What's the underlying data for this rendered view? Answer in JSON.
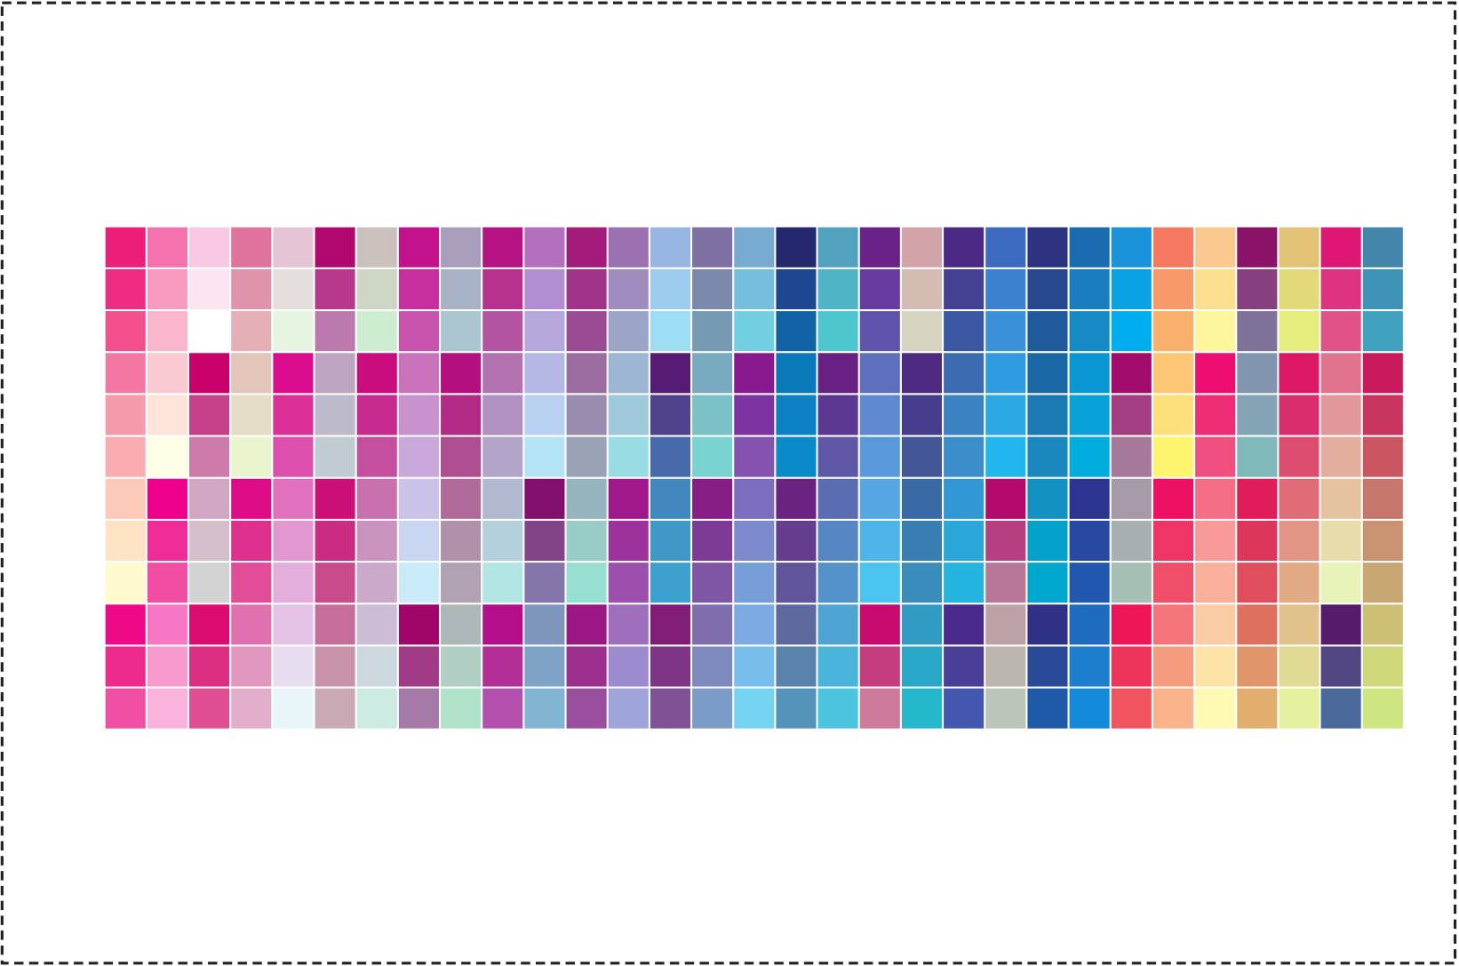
{
  "swatches": {
    "rows": [
      [
        "#ED1E79",
        "#F472AE",
        "#F9C9E3",
        "#DF739C",
        "#E5C5D3",
        "#B0086E",
        "#CAC0BC",
        "#C4128C",
        "#A99EBC",
        "#B51283",
        "#B46EBE",
        "#A21A7A",
        "#9B70B0",
        "#98B6E2",
        "#7D70A3",
        "#76AAD1",
        "#25276F",
        "#52A1BF",
        "#6A2188",
        "#D2A4AA",
        "#4A2A85",
        "#3D6BC1",
        "#2D3381",
        "#1B6BB0",
        "#1A93DA",
        "#F47960",
        "#FBC98F",
        "#8A1368",
        "#E2C275",
        "#DE1674",
        "#4485AB"
      ],
      [
        "#EF2C82",
        "#F79AC0",
        "#FCE5F1",
        "#E094AB",
        "#E4DFDA",
        "#B7398C",
        "#CED6C5",
        "#C72F9F",
        "#A8B2C6",
        "#B7328F",
        "#B28ED0",
        "#A0338A",
        "#9F8DBF",
        "#9ECCEF",
        "#7C89AD",
        "#76BFDC",
        "#1D4790",
        "#4FB5C6",
        "#683BA0",
        "#D4BCB3",
        "#444192",
        "#3A82CF",
        "#27488F",
        "#1A7DBF",
        "#0BA2E4",
        "#F8996A",
        "#FDE08F",
        "#87407F",
        "#E2DA78",
        "#DE3381",
        "#3F93B7"
      ],
      [
        "#F24F8C",
        "#F9B5CB",
        "#FFFFFF",
        "#E4B0B5",
        "#E6F5E1",
        "#BB79AE",
        "#CDEDD0",
        "#C854AE",
        "#ABC5D1",
        "#B354A2",
        "#B3A7DB",
        "#9A4B92",
        "#9AA5C8",
        "#9CDDF4",
        "#759AB1",
        "#72CFE2",
        "#1163A5",
        "#4DC6CE",
        "#5E52AA",
        "#D6D3C0",
        "#3C57A2",
        "#3A91DA",
        "#215A9C",
        "#168AC4",
        "#00AEEF",
        "#F9B06C",
        "#FEF69C",
        "#7F7298",
        "#E5EE7C",
        "#E15386",
        "#40A2BE"
      ],
      [
        "#F477A3",
        "#FACAD3",
        "#C9006B",
        "#E2C4B8",
        "#DB0C8E",
        "#BDA5C1",
        "#C90D7F",
        "#CA73BC",
        "#B30F7E",
        "#B272AF",
        "#B5B8E4",
        "#9C6EA0",
        "#9BB5D2",
        "#561B75",
        "#78ABBF",
        "#88198F",
        "#0979BA",
        "#692083",
        "#5E6FBE",
        "#4E2A82",
        "#3C6BB0",
        "#2F9BE0",
        "#1A68A6",
        "#0996D3",
        "#A20D6D",
        "#FDC674",
        "#EE0E71",
        "#8295AE",
        "#DD1865",
        "#E0748C",
        "#C81A5D"
      ],
      [
        "#F59AAA",
        "#FEE4DA",
        "#C6418A",
        "#E4DCC5",
        "#DC2F98",
        "#BDBACB",
        "#C72B8F",
        "#CA91CF",
        "#B12B87",
        "#B08FC1",
        "#B8D1F0",
        "#9A8CAE",
        "#9DC9DB",
        "#4F418C",
        "#7CC0C8",
        "#7C34A0",
        "#0C82C3",
        "#5D3892",
        "#5E89CE",
        "#463D8C",
        "#3A82C2",
        "#2CA8E5",
        "#1B7AB4",
        "#08A2D7",
        "#A33E82",
        "#FCE07C",
        "#EE2D75",
        "#82A4B5",
        "#DA2D6C",
        "#E2989B",
        "#C8355F"
      ],
      [
        "#F8AEB1",
        "#FFFFE5",
        "#CC7BAB",
        "#E8F5CD",
        "#DD4FAD",
        "#C1CCD2",
        "#C54F9F",
        "#C9A8DC",
        "#AE4D90",
        "#B3A4CA",
        "#B4E3F6",
        "#9AA3B5",
        "#9ADCE3",
        "#466AAA",
        "#79D3D0",
        "#8453AE",
        "#0A8AC9",
        "#5E58A6",
        "#5799DB",
        "#425597",
        "#3A8DC9",
        "#22B6EE",
        "#1A87BE",
        "#00ADDC",
        "#A6789A",
        "#FEF56E",
        "#EF5080",
        "#80B9BA",
        "#DB4C6E",
        "#E3AE9E",
        "#C95661"
      ],
      [
        "#FBCAB8",
        "#EC008C",
        "#D1A7C4",
        "#DE0D87",
        "#E170BE",
        "#CA0F77",
        "#C970AF",
        "#CBC2E8",
        "#B06B9B",
        "#B1B9D1",
        "#830F6C",
        "#96B4BD",
        "#A0188C",
        "#4287BD",
        "#861E86",
        "#7C6DBE",
        "#6A2381",
        "#5A6DB0",
        "#56A6E3",
        "#3A6AA4",
        "#3198D3",
        "#B30A6C",
        "#1192C3",
        "#2B3591",
        "#A69AA8",
        "#EE1163",
        "#F46E86",
        "#DF1D58",
        "#E06C78",
        "#E5C39E",
        "#C6766A"
      ],
      [
        "#FDE3C3",
        "#EE2B97",
        "#D4BFCA",
        "#DE2F8C",
        "#E197CF",
        "#C92C81",
        "#CA92BE",
        "#C9D6F2",
        "#B190AA",
        "#B3D0DC",
        "#834389",
        "#98CCC6",
        "#9D329D",
        "#3F98C6",
        "#7E3B96",
        "#7C89CD",
        "#643D8E",
        "#5686C4",
        "#4FB5E9",
        "#387EB1",
        "#2AA6D9",
        "#B63F82",
        "#04A1CA",
        "#2849A0",
        "#A7AFB1",
        "#EF3466",
        "#F79A98",
        "#DC365A",
        "#E19585",
        "#E6DDAB",
        "#C99371"
      ],
      [
        "#FFFACD",
        "#F04DA3",
        "#D3D3D3",
        "#E14D97",
        "#E3AEDC",
        "#C84C8C",
        "#CBA9CA",
        "#C9ECF8",
        "#B0A2B3",
        "#B2E5E3",
        "#8476AB",
        "#97DFD0",
        "#9D4FAE",
        "#3EA0CF",
        "#7F55A5",
        "#789ED9",
        "#60559B",
        "#5392CA",
        "#4BC4F0",
        "#3A8CBB",
        "#25B3E0",
        "#B97798",
        "#00A8CE",
        "#2157AF",
        "#A6BFB5",
        "#F04F6A",
        "#F9B09B",
        "#DE4E5C",
        "#E0AB84",
        "#E8F3B7",
        "#C9A772"
      ],
      [
        "#EE0A87",
        "#F677C3",
        "#DC0B70",
        "#E170AF",
        "#E5C3E7",
        "#C76D99",
        "#CBBDD3",
        "#A0066A",
        "#AEB7B7",
        "#B40E8A",
        "#7F96BC",
        "#9B1884",
        "#9E6FBD",
        "#811D74",
        "#7F6EAD",
        "#7BABE2",
        "#5E69A0",
        "#4EA4D2",
        "#C70A6E",
        "#309CC4",
        "#4B2A8E",
        "#BCA2A6",
        "#2E3186",
        "#1D6CBF",
        "#EE1656",
        "#F5747A",
        "#F9CCA3",
        "#DE705F",
        "#E1C28D",
        "#561C6B",
        "#CDBF73"
      ],
      [
        "#EF2A8D",
        "#F79BCF",
        "#DC2E82",
        "#E297BF",
        "#E6DDF1",
        "#C893A8",
        "#CCD7DE",
        "#A23B87",
        "#B0CEC3",
        "#B42E97",
        "#7FA3C7",
        "#9C2F8E",
        "#9C8BCF",
        "#7E3585",
        "#7E8ABD",
        "#77BEEC",
        "#5A83AB",
        "#4AB4DA",
        "#C43D7F",
        "#2AA8C9",
        "#4A3F98",
        "#BBB6B0",
        "#2A4A99",
        "#1C7ECC",
        "#EF3459",
        "#F69C7E",
        "#FCE4A7",
        "#E0966A",
        "#E1DA95",
        "#524683",
        "#CFD87A"
      ],
      [
        "#F04FA3",
        "#F9B3DC",
        "#DF4E92",
        "#E3AECB",
        "#E8F6FA",
        "#C9A9B3",
        "#CCEBE2",
        "#A67AA8",
        "#B1E2CA",
        "#B350AE",
        "#80B4D0",
        "#9A4F9E",
        "#9EA4D9",
        "#7E5294",
        "#7B9CC7",
        "#75D3F2",
        "#5594BA",
        "#4BC4E0",
        "#CD799A",
        "#25B8CD",
        "#4457AF",
        "#BBC5BA",
        "#1E5AA7",
        "#138ADA",
        "#F1545E",
        "#F9B38B",
        "#FEF9B3",
        "#E2AE6D",
        "#E5F19F",
        "#4A6A9C",
        "#CDE681"
      ]
    ]
  }
}
